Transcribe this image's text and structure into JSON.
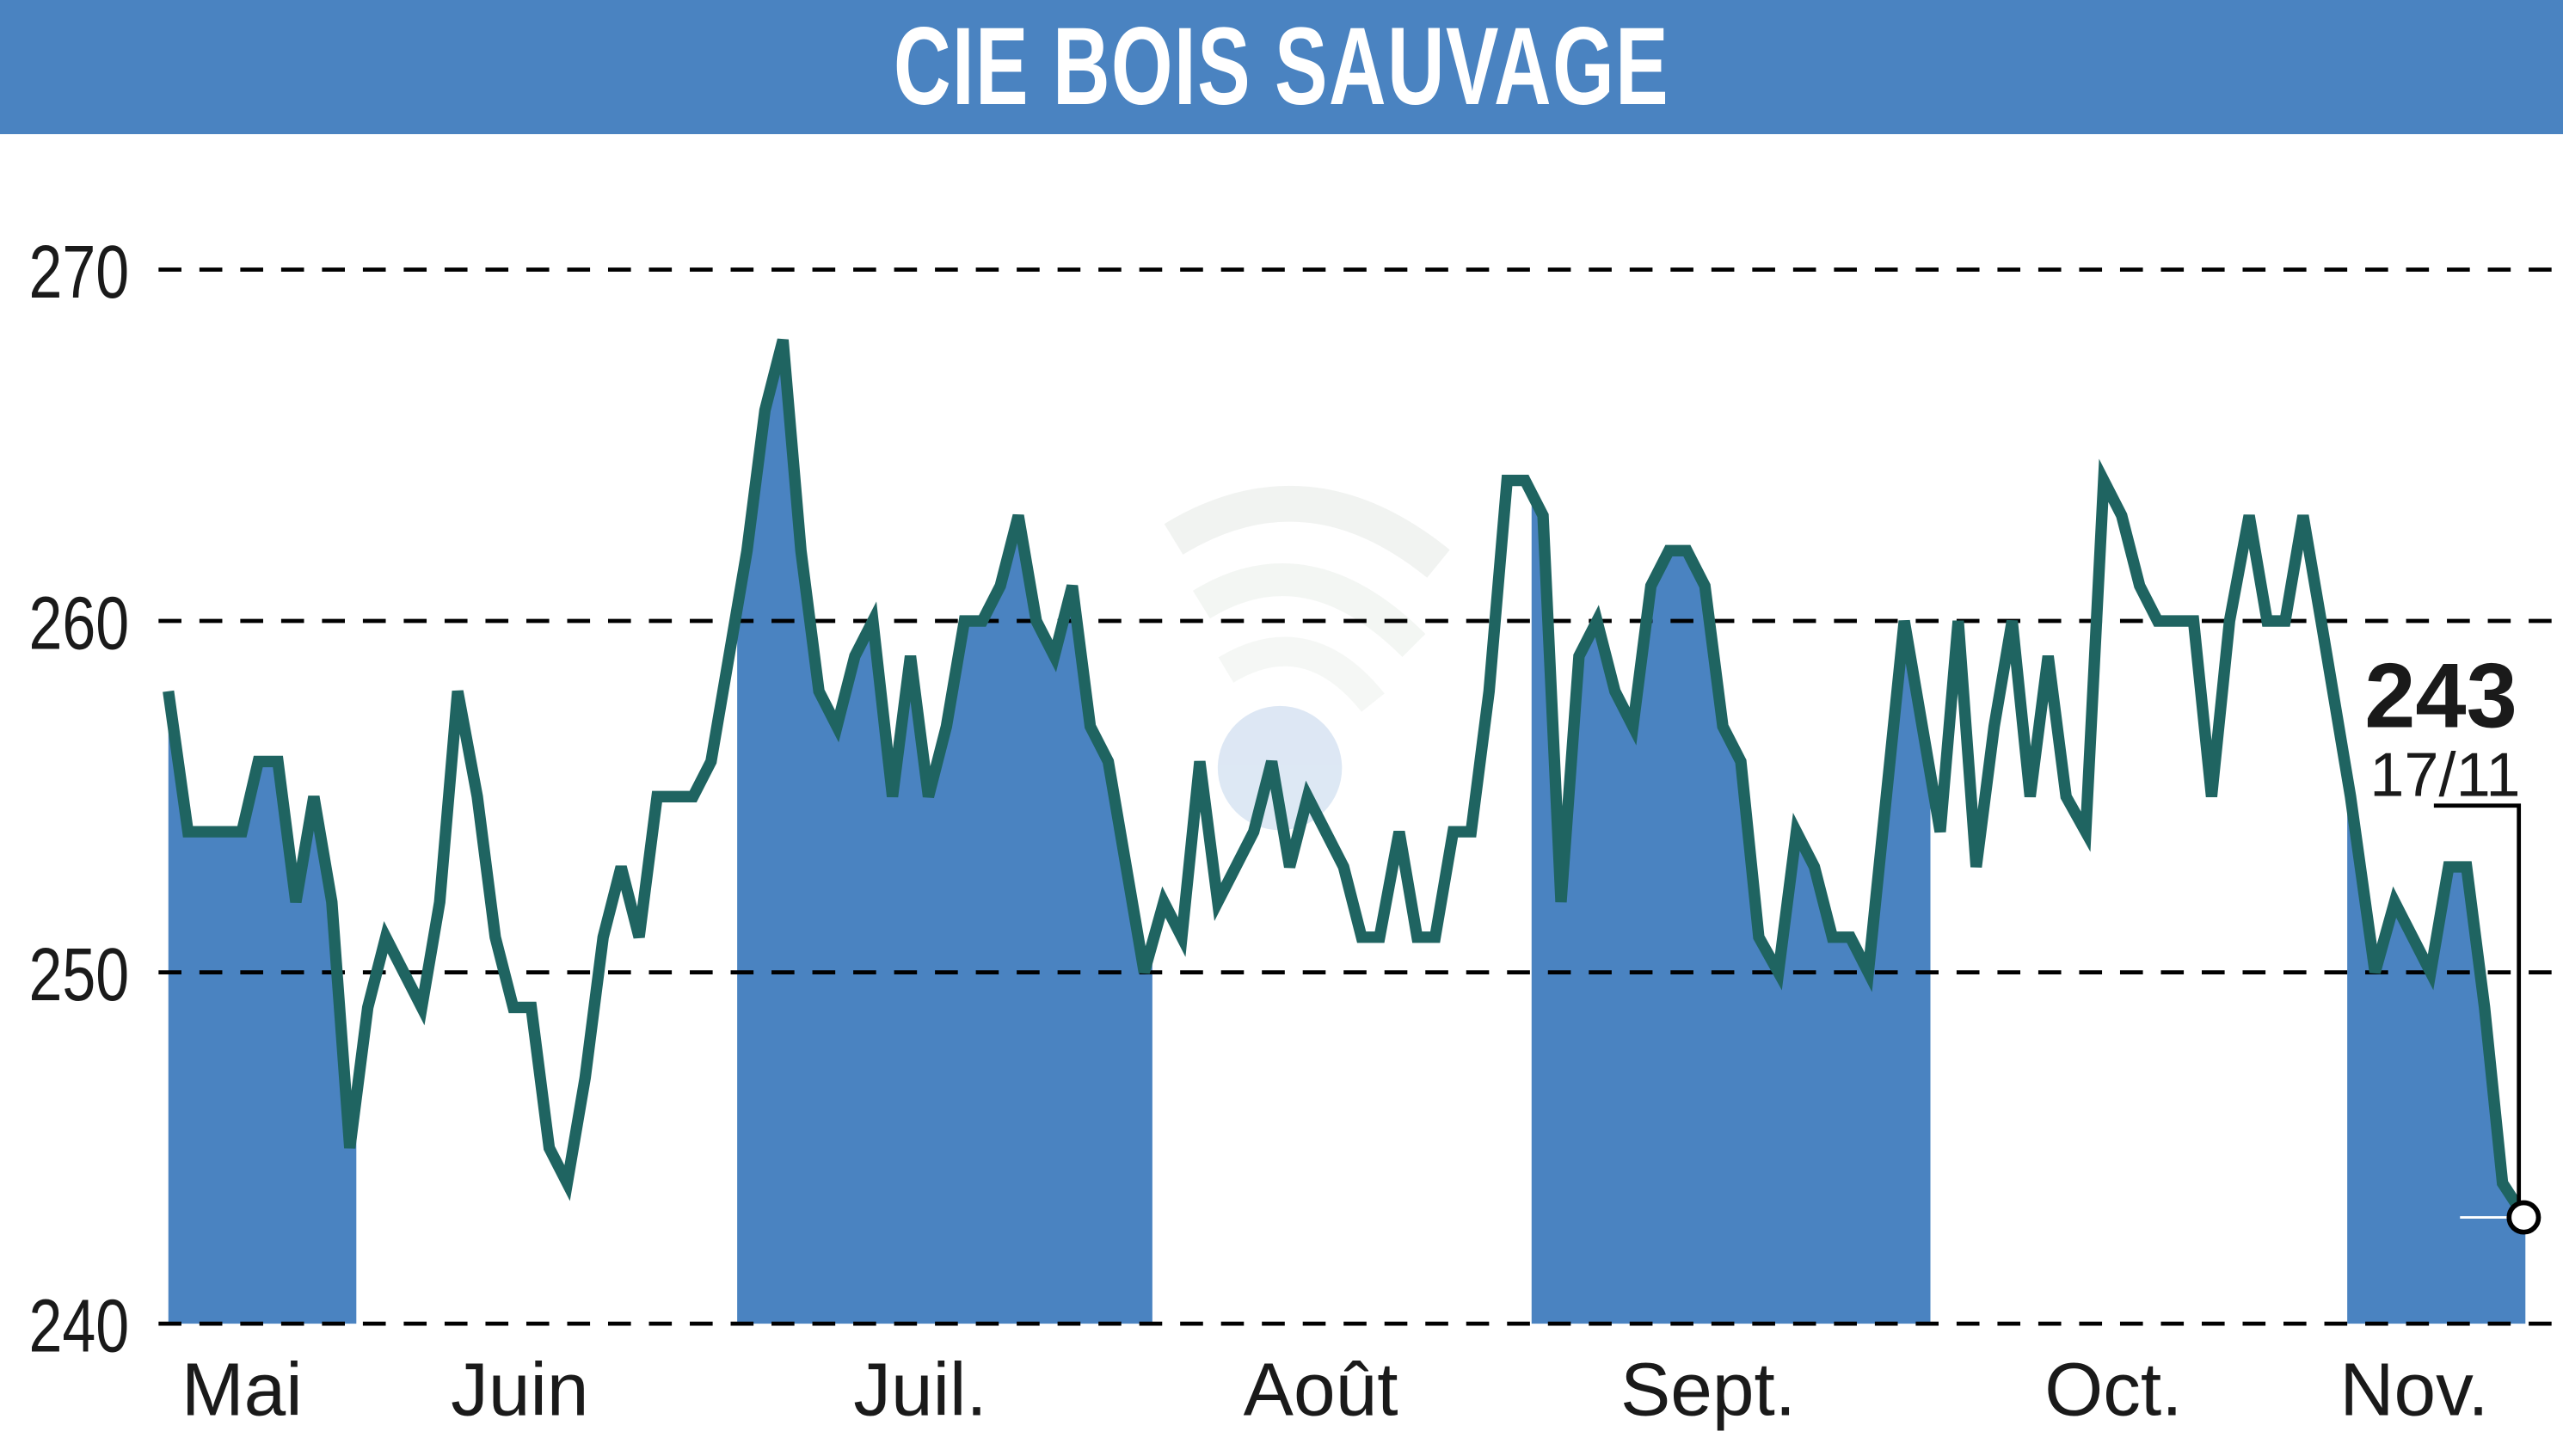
{
  "header": {
    "title": "CIE BOIS SAUVAGE"
  },
  "last_point": {
    "value": "243",
    "date": "17/11"
  },
  "colors": {
    "header_bg": "#4a83c1",
    "fill": "#4a83c1",
    "line": "#1f6461",
    "grid": "#000000",
    "text": "#1a1a1a"
  },
  "chart_data": {
    "type": "line",
    "title": "CIE BOIS SAUVAGE",
    "xlabel": "",
    "ylabel": "",
    "ylim": [
      240,
      270
    ],
    "yticks": [
      240,
      250,
      260,
      270
    ],
    "grid": "horizontal dashed",
    "x_tick_labels": [
      "Mai",
      "Juin",
      "Juil.",
      "Août",
      "Sept.",
      "Oct.",
      "Nov."
    ],
    "shaded_months": [
      "Mai",
      "Juil.",
      "Sept.",
      "Nov."
    ],
    "annotation": {
      "value": 243,
      "date": "17/11"
    },
    "points": [
      [
        103,
        258
      ],
      [
        115,
        254
      ],
      [
        126,
        254
      ],
      [
        137,
        254
      ],
      [
        148,
        254
      ],
      [
        158,
        256
      ],
      [
        170,
        256
      ],
      [
        181,
        252
      ],
      [
        192,
        255
      ],
      [
        203,
        252
      ],
      [
        214,
        245
      ],
      [
        225,
        249
      ],
      [
        236,
        251
      ],
      [
        247,
        250
      ],
      [
        258,
        249
      ],
      [
        269,
        252
      ],
      [
        280,
        258
      ],
      [
        292,
        255
      ],
      [
        303,
        251
      ],
      [
        314,
        249
      ],
      [
        325,
        249
      ],
      [
        336,
        245
      ],
      [
        347,
        244
      ],
      [
        358,
        247
      ],
      [
        369,
        251
      ],
      [
        380,
        253
      ],
      [
        391,
        251
      ],
      [
        402,
        255
      ],
      [
        413,
        255
      ],
      [
        424,
        255
      ],
      [
        435,
        256
      ],
      [
        446,
        259
      ],
      [
        457,
        262
      ],
      [
        468,
        266
      ],
      [
        479,
        268
      ],
      [
        490,
        262
      ],
      [
        501,
        258
      ],
      [
        512,
        257
      ],
      [
        523,
        259
      ],
      [
        534,
        260
      ],
      [
        546,
        255
      ],
      [
        557,
        259
      ],
      [
        568,
        255
      ],
      [
        579,
        257
      ],
      [
        590,
        260
      ],
      [
        601,
        260
      ],
      [
        612,
        261
      ],
      [
        623,
        263
      ],
      [
        634,
        260
      ],
      [
        645,
        259
      ],
      [
        656,
        261
      ],
      [
        667,
        257
      ],
      [
        678,
        256
      ],
      [
        689,
        253
      ],
      [
        700,
        250
      ],
      [
        712,
        252
      ],
      [
        723,
        251
      ],
      [
        734,
        256
      ],
      [
        745,
        252
      ],
      [
        756,
        253
      ],
      [
        767,
        254
      ],
      [
        778,
        256
      ],
      [
        789,
        253
      ],
      [
        800,
        255
      ],
      [
        811,
        254
      ],
      [
        822,
        253
      ],
      [
        833,
        251
      ],
      [
        844,
        251
      ],
      [
        856,
        254
      ],
      [
        867,
        251
      ],
      [
        878,
        251
      ],
      [
        889,
        254
      ],
      [
        900,
        254
      ],
      [
        911,
        258
      ],
      [
        922,
        264
      ],
      [
        933,
        264
      ],
      [
        944,
        263
      ],
      [
        955,
        252
      ],
      [
        966,
        259
      ],
      [
        977,
        260
      ],
      [
        988,
        258
      ],
      [
        999,
        257
      ],
      [
        1010,
        261
      ],
      [
        1021,
        262
      ],
      [
        1032,
        262
      ],
      [
        1043,
        261
      ],
      [
        1054,
        257
      ],
      [
        1065,
        256
      ],
      [
        1076,
        251
      ],
      [
        1088,
        250
      ],
      [
        1099,
        254
      ],
      [
        1110,
        253
      ],
      [
        1121,
        251
      ],
      [
        1132,
        251
      ],
      [
        1143,
        250
      ],
      [
        1154,
        255
      ],
      [
        1165,
        260
      ],
      [
        1176,
        257
      ],
      [
        1187,
        254
      ],
      [
        1198,
        260
      ],
      [
        1209,
        253
      ],
      [
        1220,
        257
      ],
      [
        1231,
        260
      ],
      [
        1242,
        255
      ],
      [
        1253,
        259
      ],
      [
        1264,
        255
      ],
      [
        1276,
        254
      ],
      [
        1287,
        264
      ],
      [
        1298,
        263
      ],
      [
        1309,
        261
      ],
      [
        1320,
        260
      ],
      [
        1331,
        260
      ],
      [
        1342,
        260
      ],
      [
        1353,
        255
      ],
      [
        1364,
        260
      ],
      [
        1376,
        263
      ],
      [
        1387,
        260
      ],
      [
        1398,
        260
      ],
      [
        1409,
        263
      ],
      [
        1420,
        260
      ],
      [
        1438,
        255
      ],
      [
        1453,
        250
      ],
      [
        1465,
        252
      ],
      [
        1476,
        251
      ],
      [
        1487,
        250
      ],
      [
        1498,
        253
      ],
      [
        1509,
        253
      ],
      [
        1520,
        249
      ],
      [
        1531,
        244
      ],
      [
        1545,
        243
      ]
    ]
  }
}
